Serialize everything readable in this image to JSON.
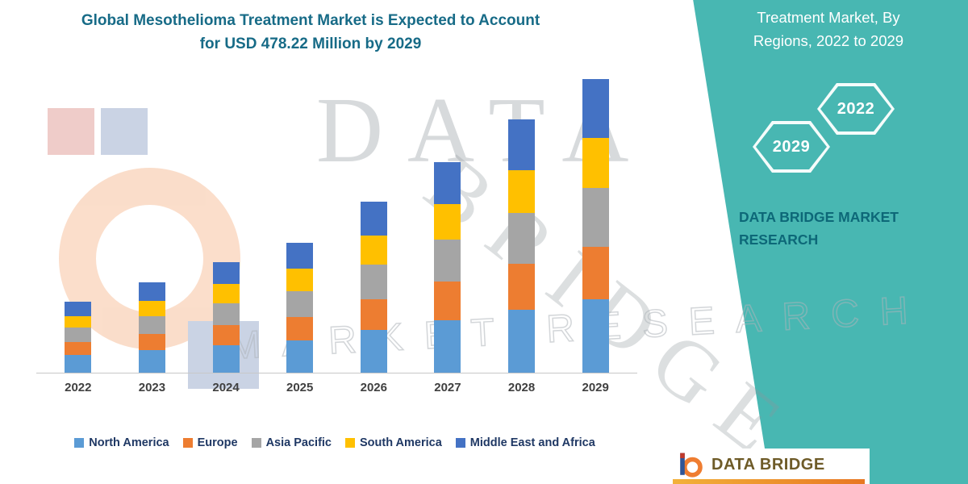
{
  "header": {
    "title_line1": "Global Mesothelioma Treatment Market is Expected to Account",
    "title_line2": "for USD 478.22 Million by 2029"
  },
  "chart_data": {
    "type": "bar",
    "stacked": true,
    "title": "Global Mesothelioma Treatment Market is Expected to Account for USD 478.22 Million by 2029",
    "unit": "USD Million",
    "categories": [
      "2022",
      "2023",
      "2024",
      "2025",
      "2026",
      "2027",
      "2028",
      "2029"
    ],
    "series": [
      {
        "name": "North America",
        "color": "#5B9BD5",
        "values": [
          29,
          37,
          45,
          53,
          70,
          86,
          103,
          119
        ]
      },
      {
        "name": "Europe",
        "color": "#ED7D31",
        "values": [
          21,
          26,
          32,
          38,
          50,
          62,
          74,
          86
        ]
      },
      {
        "name": "Asia Pacific",
        "color": "#A5A5A5",
        "values": [
          23,
          29,
          36,
          42,
          56,
          69,
          83,
          96
        ]
      },
      {
        "name": "South America",
        "color": "#FFC000",
        "values": [
          19,
          25,
          31,
          36,
          47,
          58,
          70,
          81
        ]
      },
      {
        "name": "Middle East and Africa",
        "color": "#4472C4",
        "values": [
          23,
          30,
          36,
          43,
          56,
          68,
          83,
          96.22
        ]
      }
    ],
    "totals": [
      115,
      147,
      180,
      212,
      279,
      343,
      413,
      478.22
    ],
    "values_estimated": true,
    "ylim": [
      0,
      500
    ],
    "grid": false,
    "y_axis_visible": false,
    "legend_position": "bottom"
  },
  "side_panel": {
    "title": "Treatment Market, By Regions, 2022 to 2029",
    "hexagons": [
      {
        "label": "2029"
      },
      {
        "label": "2022"
      }
    ],
    "brand": "DATA BRIDGE MARKET RESEARCH"
  },
  "watermark": {
    "word1": "DATA",
    "word2": "BRIDGE",
    "word3": "MARKET RESEARCH"
  },
  "footer": {
    "brand": "DATA BRIDGE"
  },
  "colors": {
    "panel_teal": "#48B7B2",
    "title_text": "#176B87",
    "panel_title_text": "#FFFFFF",
    "panel_brand_text": "#0D6878",
    "legend_text": "#1F3864",
    "axis_label_text": "#404040",
    "footer_brand_text": "#6E5B28",
    "footer_accent_orange": "#E87722",
    "watermark_gray": "#8F969C"
  }
}
